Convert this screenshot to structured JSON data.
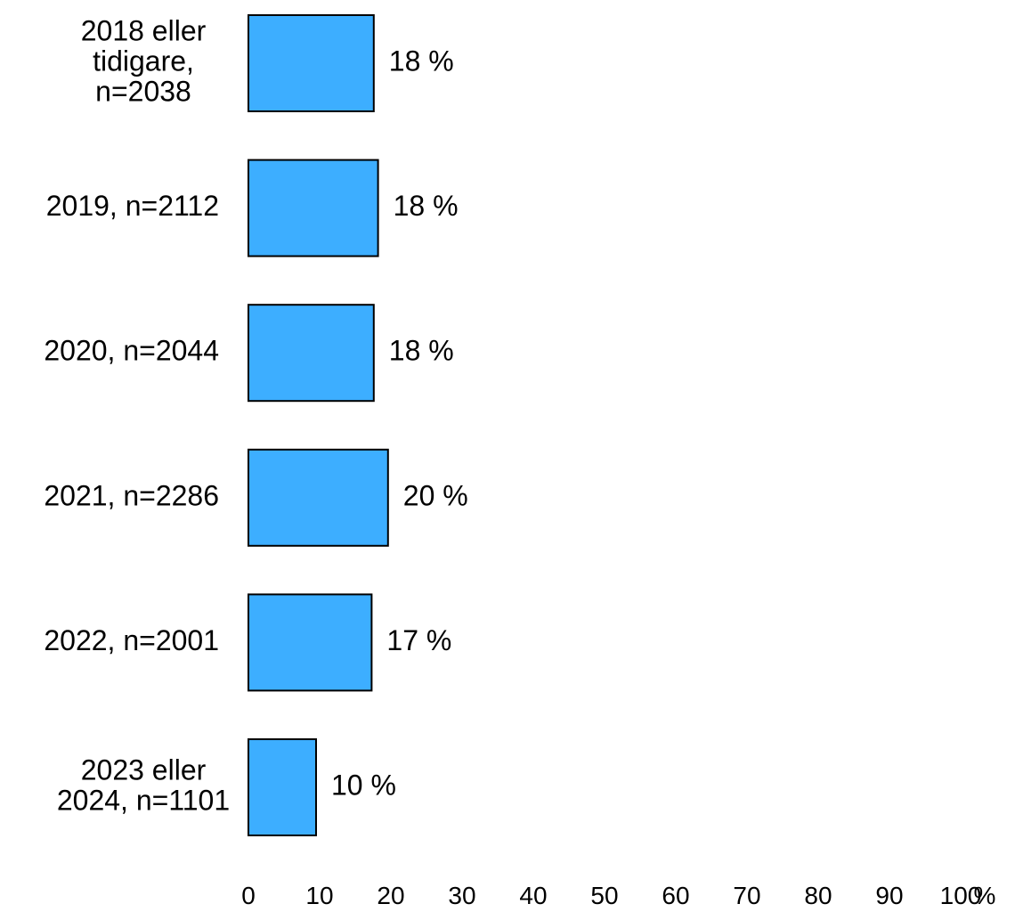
{
  "colors": {
    "bar_fill": "#3daeff",
    "bar_stroke": "#000000",
    "text": "#000000",
    "background": "#ffffff"
  },
  "chart_data": {
    "type": "bar",
    "orientation": "horizontal",
    "categories": [
      "2018 eller tidigare, n=2038",
      "2019, n=2112",
      "2020, n=2044",
      "2021, n=2286",
      "2022, n=2001",
      "2023 eller 2024, n=1101"
    ],
    "category_lines": [
      [
        "2018 eller",
        "tidigare,",
        "n=2038"
      ],
      [
        "2019, n=2112"
      ],
      [
        "2020, n=2044"
      ],
      [
        "2021, n=2286"
      ],
      [
        "2022, n=2001"
      ],
      [
        "2023 eller",
        "2024, n=1101"
      ]
    ],
    "values": [
      17.6,
      18.2,
      17.6,
      19.6,
      17.3,
      9.5
    ],
    "value_labels": [
      "18 %",
      "18 %",
      "18 %",
      "20 %",
      "17 %",
      "10 %"
    ],
    "xlim": [
      0,
      100
    ],
    "x_ticks": [
      0,
      10,
      20,
      30,
      40,
      50,
      60,
      70,
      80,
      90,
      100
    ],
    "x_unit_label": "%",
    "grid": false,
    "legend": "none"
  }
}
